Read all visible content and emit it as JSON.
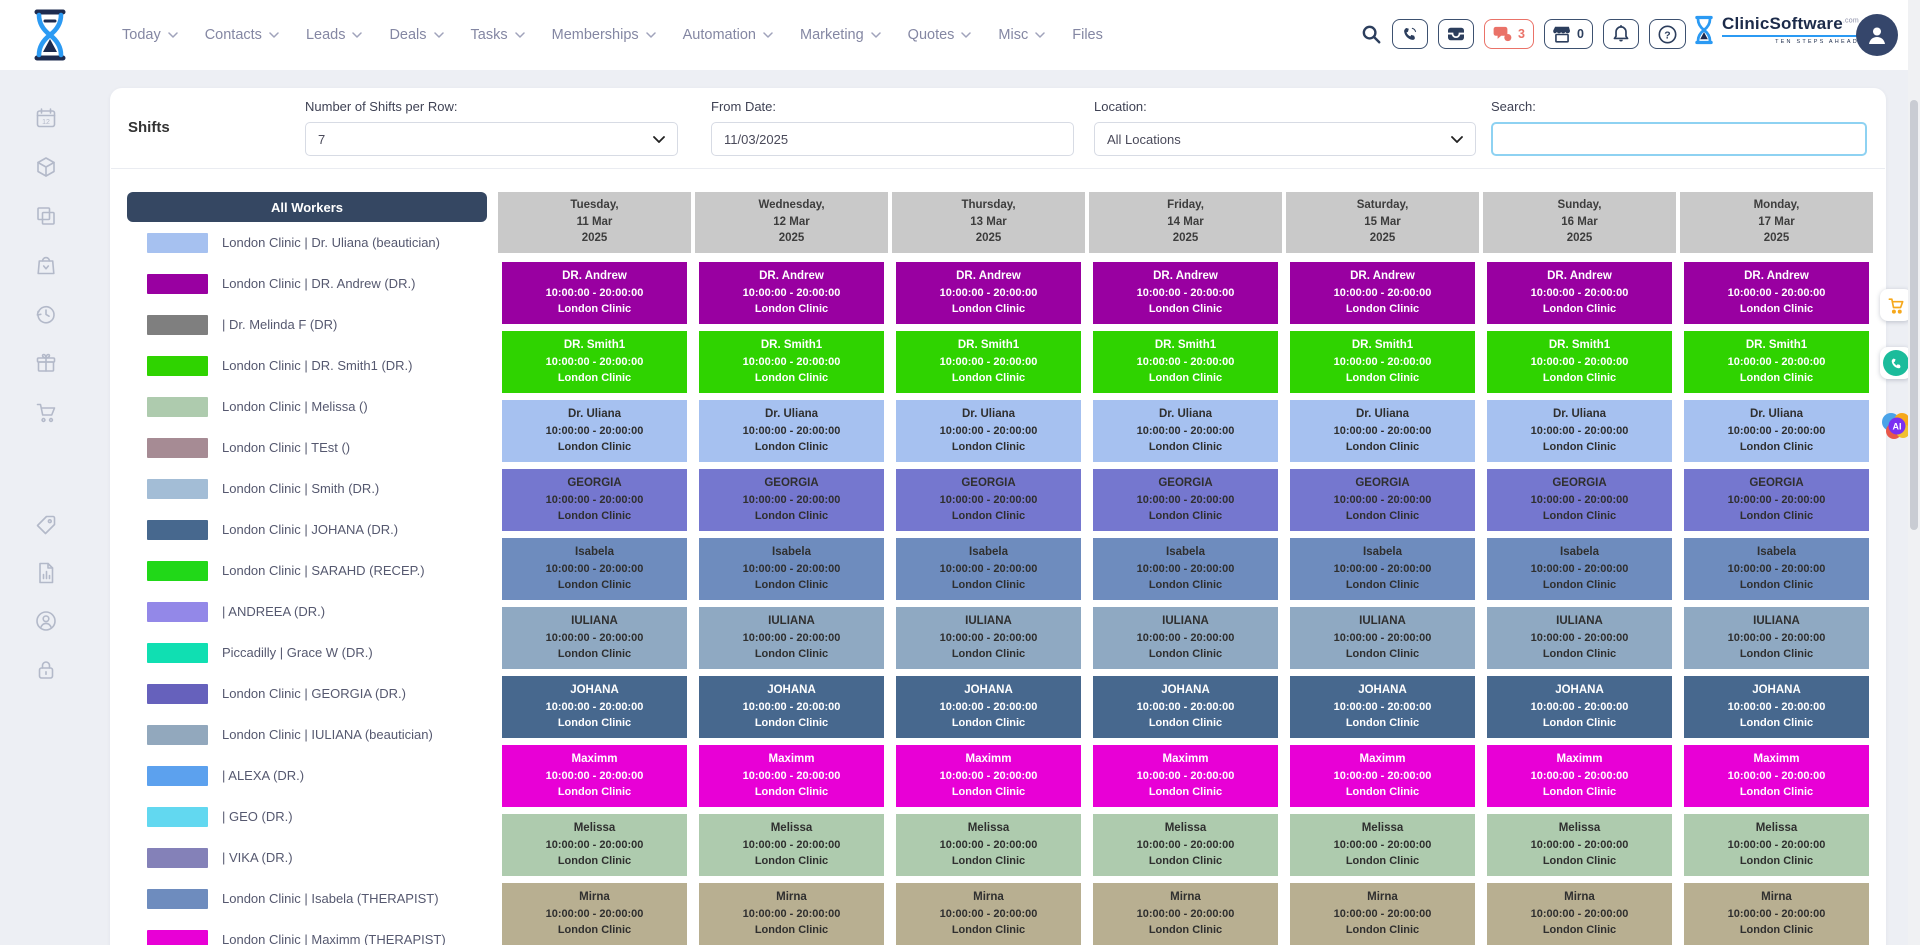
{
  "nav": {
    "items": [
      {
        "label": "Today",
        "caret": true
      },
      {
        "label": "Contacts",
        "caret": true
      },
      {
        "label": "Leads",
        "caret": true
      },
      {
        "label": "Deals",
        "caret": true
      },
      {
        "label": "Tasks",
        "caret": true
      },
      {
        "label": "Memberships",
        "caret": true
      },
      {
        "label": "Automation",
        "caret": true
      },
      {
        "label": "Marketing",
        "caret": true
      },
      {
        "label": "Quotes",
        "caret": true
      },
      {
        "label": "Misc",
        "caret": true
      },
      {
        "label": "Files",
        "caret": false
      }
    ]
  },
  "topbar": {
    "buttons": [
      {
        "icon": "phone",
        "count": "",
        "alert": false
      },
      {
        "icon": "inbox",
        "count": "",
        "alert": false
      },
      {
        "icon": "chat",
        "count": "3",
        "alert": true
      },
      {
        "icon": "store",
        "count": "0",
        "alert": false
      },
      {
        "icon": "bell",
        "count": "",
        "alert": false
      },
      {
        "icon": "help",
        "count": "",
        "alert": false
      }
    ],
    "chat_accent": "#ea7268",
    "brand": {
      "name": "ClinicSoftware",
      "tld": ".com",
      "tagline": "TEN STEPS AHEAD"
    }
  },
  "sidebar_icons": [
    "calendar-date",
    "package",
    "copy",
    "shopping-bag",
    "history",
    "gift",
    "shopping-cart",
    "price-tag",
    "report",
    "user-circle",
    "lock"
  ],
  "filters": {
    "title": "Shifts",
    "per_row": {
      "label": "Number of Shifts per Row:",
      "value": "7"
    },
    "from_date": {
      "label": "From Date:",
      "value": "11/03/2025"
    },
    "location": {
      "label": "Location:",
      "value": "All Locations"
    },
    "search": {
      "label": "Search:",
      "value": ""
    }
  },
  "workers": {
    "header": "All Workers",
    "items": [
      {
        "color": "#A6C1F0",
        "label": "London Clinic | Dr. Uliana (beautician)"
      },
      {
        "color": "#9900A1",
        "label": "London Clinic | DR. Andrew (DR.)"
      },
      {
        "color": "#7F7F7F",
        "label": "| Dr. Melinda F (DR)"
      },
      {
        "color": "#2FD300",
        "label": "London Clinic | DR. Smith1 (DR.)"
      },
      {
        "color": "#AECBAE",
        "label": "London Clinic | Melissa ()"
      },
      {
        "color": "#A68B94",
        "label": "London Clinic | TEst ()"
      },
      {
        "color": "#A3BDD6",
        "label": "London Clinic | Smith (DR.)"
      },
      {
        "color": "#47688E",
        "label": "London Clinic | JOHANA (DR.)"
      },
      {
        "color": "#21D818",
        "label": "London Clinic | SARAHD (RECEP.)"
      },
      {
        "color": "#9388E8",
        "label": "| ANDREEA (DR.)"
      },
      {
        "color": "#10DFB2",
        "label": "Piccadilly | Grace W (DR.)"
      },
      {
        "color": "#6661BC",
        "label": "London Clinic | GEORGIA (DR.)"
      },
      {
        "color": "#92A8BD",
        "label": "London Clinic | IULIANA (beautician)"
      },
      {
        "color": "#5CA1EE",
        "label": "| ALEXA (DR.)"
      },
      {
        "color": "#62D8F0",
        "label": "| GEO (DR.)"
      },
      {
        "color": "#8481B8",
        "label": "| VIKA (DR.)"
      },
      {
        "color": "#6E8CBE",
        "label": "London Clinic | Isabela (THERAPIST)"
      },
      {
        "color": "#E800D6",
        "label": "London Clinic | Maximm (THERAPIST)"
      }
    ]
  },
  "calendar": {
    "days": [
      {
        "weekday": "Tuesday,",
        "date": "11 Mar",
        "year": "2025"
      },
      {
        "weekday": "Wednesday,",
        "date": "12 Mar",
        "year": "2025"
      },
      {
        "weekday": "Thursday,",
        "date": "13 Mar",
        "year": "2025"
      },
      {
        "weekday": "Friday,",
        "date": "14 Mar",
        "year": "2025"
      },
      {
        "weekday": "Saturday,",
        "date": "15 Mar",
        "year": "2025"
      },
      {
        "weekday": "Sunday,",
        "date": "16 Mar",
        "year": "2025"
      },
      {
        "weekday": "Monday,",
        "date": "17 Mar",
        "year": "2025"
      }
    ],
    "shift_time": "10:00:00 - 20:00:00",
    "shift_location": "London Clinic",
    "rows": [
      {
        "name": "DR. Andrew",
        "bg": "#9900A1",
        "fg": "#ffffff"
      },
      {
        "name": "DR. Smith1",
        "bg": "#2FD300",
        "fg": "#ffffff"
      },
      {
        "name": "Dr. Uliana",
        "bg": "#A6C1F0",
        "fg": "#2f2f2f"
      },
      {
        "name": "GEORGIA",
        "bg": "#7577CF",
        "fg": "#2f2f2f"
      },
      {
        "name": "Isabela",
        "bg": "#6E8CBE",
        "fg": "#2f2f2f"
      },
      {
        "name": "IULIANA",
        "bg": "#8FA9C2",
        "fg": "#2f2f2f"
      },
      {
        "name": "JOHANA",
        "bg": "#47688E",
        "fg": "#ffffff"
      },
      {
        "name": "Maximm",
        "bg": "#E800D6",
        "fg": "#ffffff"
      },
      {
        "name": "Melissa",
        "bg": "#AECBAE",
        "fg": "#2f2f2f"
      },
      {
        "name": "Mirna",
        "bg": "#B8AF91",
        "fg": "#2f2f2f"
      }
    ]
  },
  "floating": [
    {
      "name": "cart-orange",
      "color": "#f6a81c"
    },
    {
      "name": "phone-teal",
      "color": "#1bbc9b"
    },
    {
      "name": "ai-assistant",
      "color": "#7b2ff2"
    }
  ]
}
